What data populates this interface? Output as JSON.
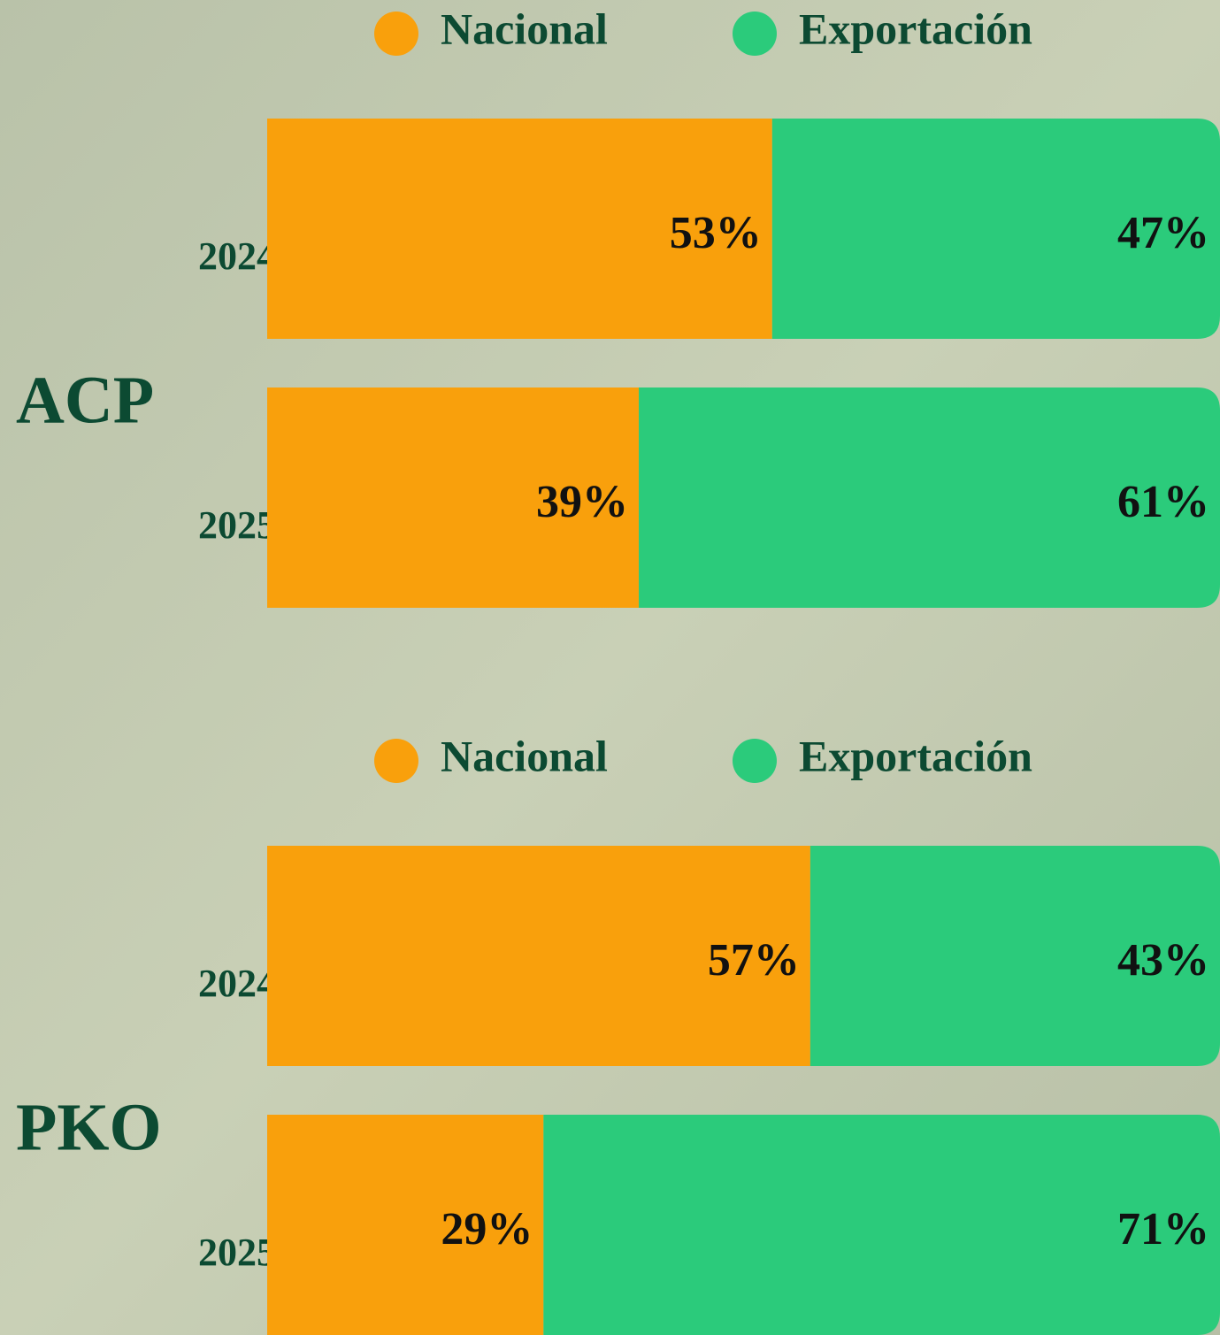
{
  "chart_data": [
    {
      "type": "bar",
      "orientation": "horizontal",
      "stacked": true,
      "ylabel": "ACP",
      "categories": [
        "2024",
        "2025"
      ],
      "xlim": [
        0,
        100
      ],
      "series": [
        {
          "name": "Nacional",
          "color": "#f9a00c",
          "values": [
            53,
            39
          ],
          "value_labels": [
            "53%",
            "39%"
          ]
        },
        {
          "name": "Exportación",
          "color": "#2bcb7b",
          "values": [
            47,
            61
          ],
          "value_labels": [
            "47%",
            "61%"
          ]
        }
      ]
    },
    {
      "type": "bar",
      "orientation": "horizontal",
      "stacked": true,
      "ylabel": "PKO",
      "categories": [
        "2024",
        "2025"
      ],
      "xlim": [
        0,
        100
      ],
      "series": [
        {
          "name": "Nacional",
          "color": "#f9a00c",
          "values": [
            57,
            29
          ],
          "value_labels": [
            "57%",
            "29%"
          ]
        },
        {
          "name": "Exportación",
          "color": "#2bcb7b",
          "values": [
            43,
            71
          ],
          "value_labels": [
            "43%",
            "71%"
          ]
        }
      ]
    }
  ]
}
